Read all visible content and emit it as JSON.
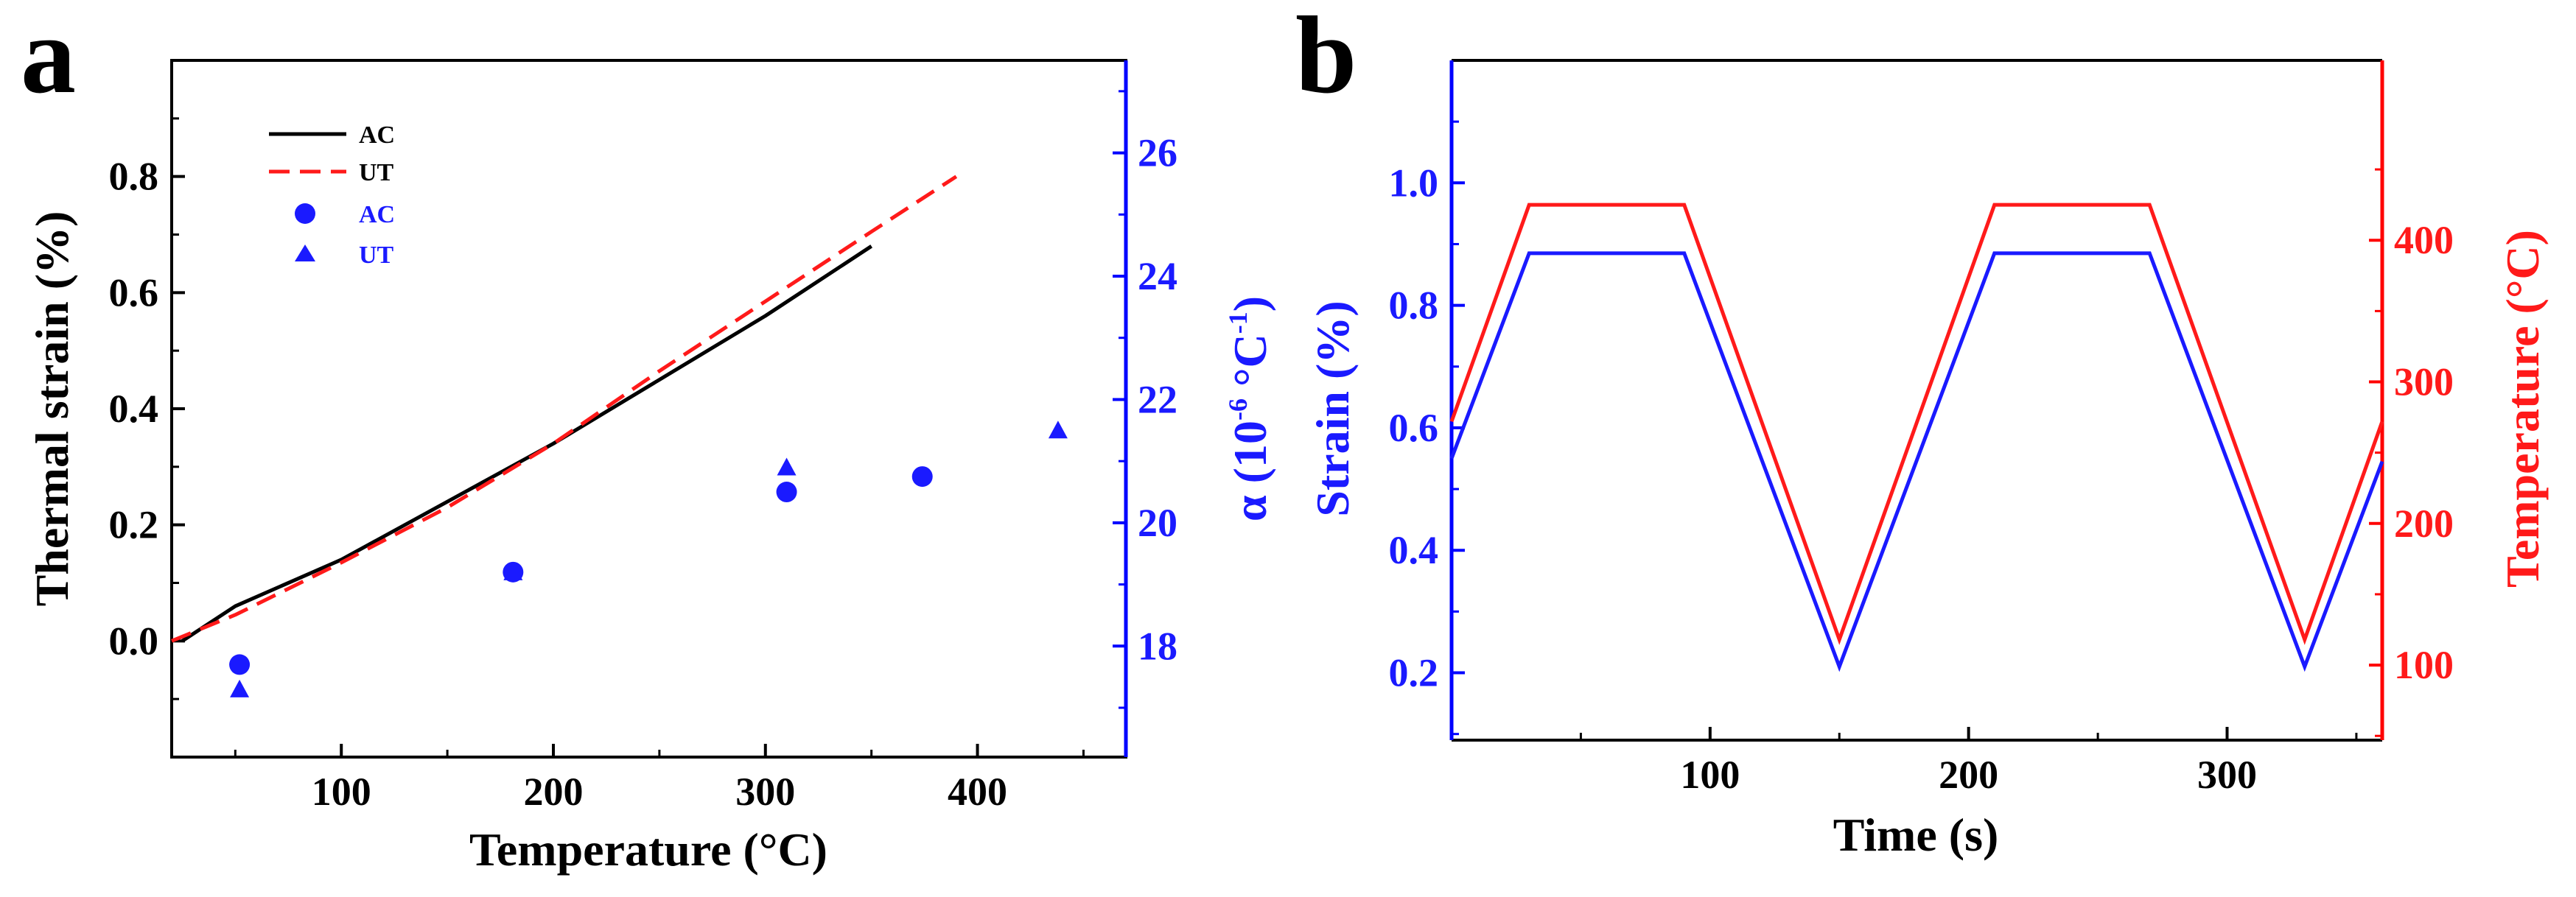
{
  "colors": {
    "black": "#000000",
    "blue": "#1a1aff",
    "red": "#ff1a1a",
    "axis_blue": "#0000ff",
    "axis_red": "#ff0000"
  },
  "chart_data": [
    {
      "panel_label": "a",
      "type": "line+scatter",
      "xlabel": "Temperature (°C)",
      "ylabel": "Thermal strain (%)",
      "y2label_main": "α (10",
      "y2label_sup": "-6",
      "y2label_unit": " °C",
      "y2label_sup2": "-1",
      "y2label_close": ")",
      "xlim": [
        20,
        470
      ],
      "ylim": [
        -0.2,
        1.0
      ],
      "y2lim": [
        16.2,
        27.5
      ],
      "xticks": [
        100,
        200,
        300,
        400
      ],
      "yticks": [
        0.0,
        0.2,
        0.4,
        0.6,
        0.8
      ],
      "y2ticks": [
        18,
        20,
        22,
        24,
        26
      ],
      "ytick_labels": [
        "0.0",
        "0.2",
        "0.4",
        "0.6",
        "0.8"
      ],
      "line_series": [
        {
          "name": "AC",
          "style": "solid",
          "color": "#000000",
          "x": [
            25,
            50,
            100,
            150,
            200,
            250,
            300,
            350
          ],
          "y": [
            0.0,
            0.06,
            0.14,
            0.24,
            0.34,
            0.45,
            0.56,
            0.68
          ]
        },
        {
          "name": "UT",
          "style": "dashed",
          "color": "#ff1a1a",
          "x": [
            20,
            50,
            100,
            150,
            200,
            250,
            300,
            350,
            390
          ],
          "y": [
            0.0,
            0.045,
            0.135,
            0.23,
            0.34,
            0.465,
            0.585,
            0.705,
            0.8
          ]
        }
      ],
      "scatter_series": [
        {
          "name": "AC",
          "marker": "circle",
          "color": "#1a1aff",
          "x": [
            52,
            181,
            310,
            374
          ],
          "y": [
            17.7,
            19.2,
            20.5,
            20.75
          ]
        },
        {
          "name": "UT",
          "marker": "triangle",
          "color": "#1a1aff",
          "x": [
            52,
            181,
            310,
            438
          ],
          "y": [
            17.3,
            19.2,
            20.9,
            21.5
          ]
        }
      ],
      "legend": [
        {
          "label": "AC",
          "kind": "line-solid",
          "color": "#000000"
        },
        {
          "label": "UT",
          "kind": "line-dashed",
          "color": "#ff1a1a"
        },
        {
          "label": "AC",
          "kind": "circle",
          "color": "#1a1aff"
        },
        {
          "label": "UT",
          "kind": "triangle",
          "color": "#1a1aff"
        }
      ],
      "legend_position": "top-left"
    },
    {
      "panel_label": "b",
      "type": "line",
      "xlabel": "Time (s)",
      "ylabel": "Strain (%)",
      "y2label": "Temperature (°C)",
      "xlim": [
        0,
        360
      ],
      "ylim": [
        0.09,
        1.2
      ],
      "y2lim": [
        47,
        527
      ],
      "xticks": [
        100,
        200,
        300
      ],
      "yticks": [
        0.2,
        0.4,
        0.6,
        0.8,
        1.0
      ],
      "ytick_labels": [
        "0.2",
        "0.4",
        "0.6",
        "0.8",
        "1.0"
      ],
      "y2ticks": [
        100,
        200,
        300,
        400
      ],
      "series": [
        {
          "name": "Strain",
          "axis": "left",
          "color": "#1a1aff",
          "x": [
            0,
            30,
            90,
            150,
            210,
            270,
            330,
            360
          ],
          "y": [
            0.55,
            0.885,
            0.885,
            0.21,
            0.885,
            0.885,
            0.21,
            0.545
          ]
        },
        {
          "name": "Temperature",
          "axis": "right",
          "color": "#ff1a1a",
          "x": [
            0,
            30,
            90,
            150,
            210,
            270,
            330,
            360
          ],
          "y": [
            272,
            425,
            425,
            118,
            425,
            425,
            118,
            272
          ]
        }
      ]
    }
  ]
}
